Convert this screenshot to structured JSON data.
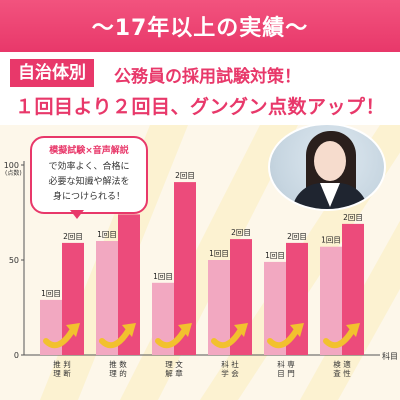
{
  "header": {
    "title": "～17年以上の実績～"
  },
  "subheader": {
    "tag": "自治体別",
    "text": "公務員の採用試験対策！"
  },
  "headline": "１回目より２回目、グングン点数アップ！",
  "callout": {
    "title": "模擬試験×音声解説",
    "lines": [
      "で効率よく、合格に",
      "必要な知識や解法を",
      "身につけられる！"
    ]
  },
  "photo": {
    "icon": "person-photo"
  },
  "colors": {
    "accent": "#e8386a",
    "first_bar": "#f2a8c1",
    "second_bar": "#ec4b7b",
    "arrow": "#f2c12e"
  },
  "chart_data": {
    "type": "bar",
    "categories": [
      "判断推理",
      "数的推理",
      "文章理解",
      "社会科学",
      "専門科目",
      "適性検査"
    ],
    "series": [
      {
        "name": "1回目",
        "values": [
          29,
          60,
          38,
          50,
          49,
          57
        ]
      },
      {
        "name": "2回目",
        "values": [
          59,
          74,
          91,
          61,
          59,
          69
        ]
      }
    ],
    "yticks": [
      0,
      50,
      100
    ],
    "ylim": [
      0,
      100
    ],
    "yunit": "(点数)",
    "xunit": "科目"
  }
}
